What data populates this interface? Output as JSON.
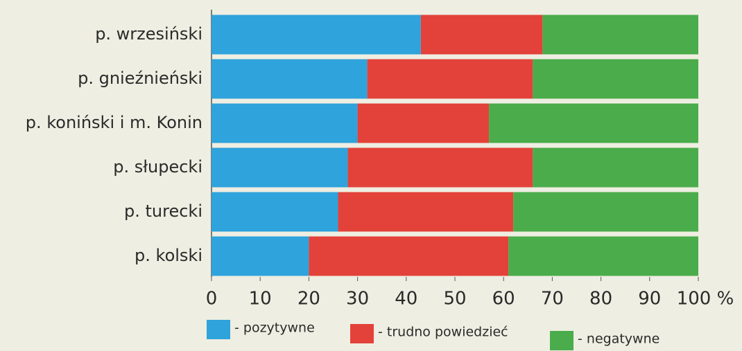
{
  "chart_data": {
    "type": "stacked_barh",
    "categories": [
      "p. wrzesiński",
      "p. gnieźnieński",
      "p. koniński i m. Konin",
      "p. słupecki",
      "p. turecki",
      "p. kolski"
    ],
    "series": [
      {
        "name": "- pozytywne",
        "color": "#2fa3dc",
        "values": [
          43,
          32,
          30,
          28,
          26,
          20
        ]
      },
      {
        "name": "- trudno powiedzieć",
        "color": "#e3423a",
        "values": [
          25,
          34,
          27,
          38,
          36,
          41
        ]
      },
      {
        "name": "- negatywne",
        "color": "#4aac4a",
        "values": [
          32,
          34,
          43,
          34,
          38,
          39
        ]
      }
    ],
    "xlim": [
      0,
      100
    ],
    "xticks": [
      0,
      10,
      20,
      30,
      40,
      50,
      60,
      70,
      80,
      90,
      {
        "value": 100,
        "label": "100 %"
      }
    ]
  }
}
